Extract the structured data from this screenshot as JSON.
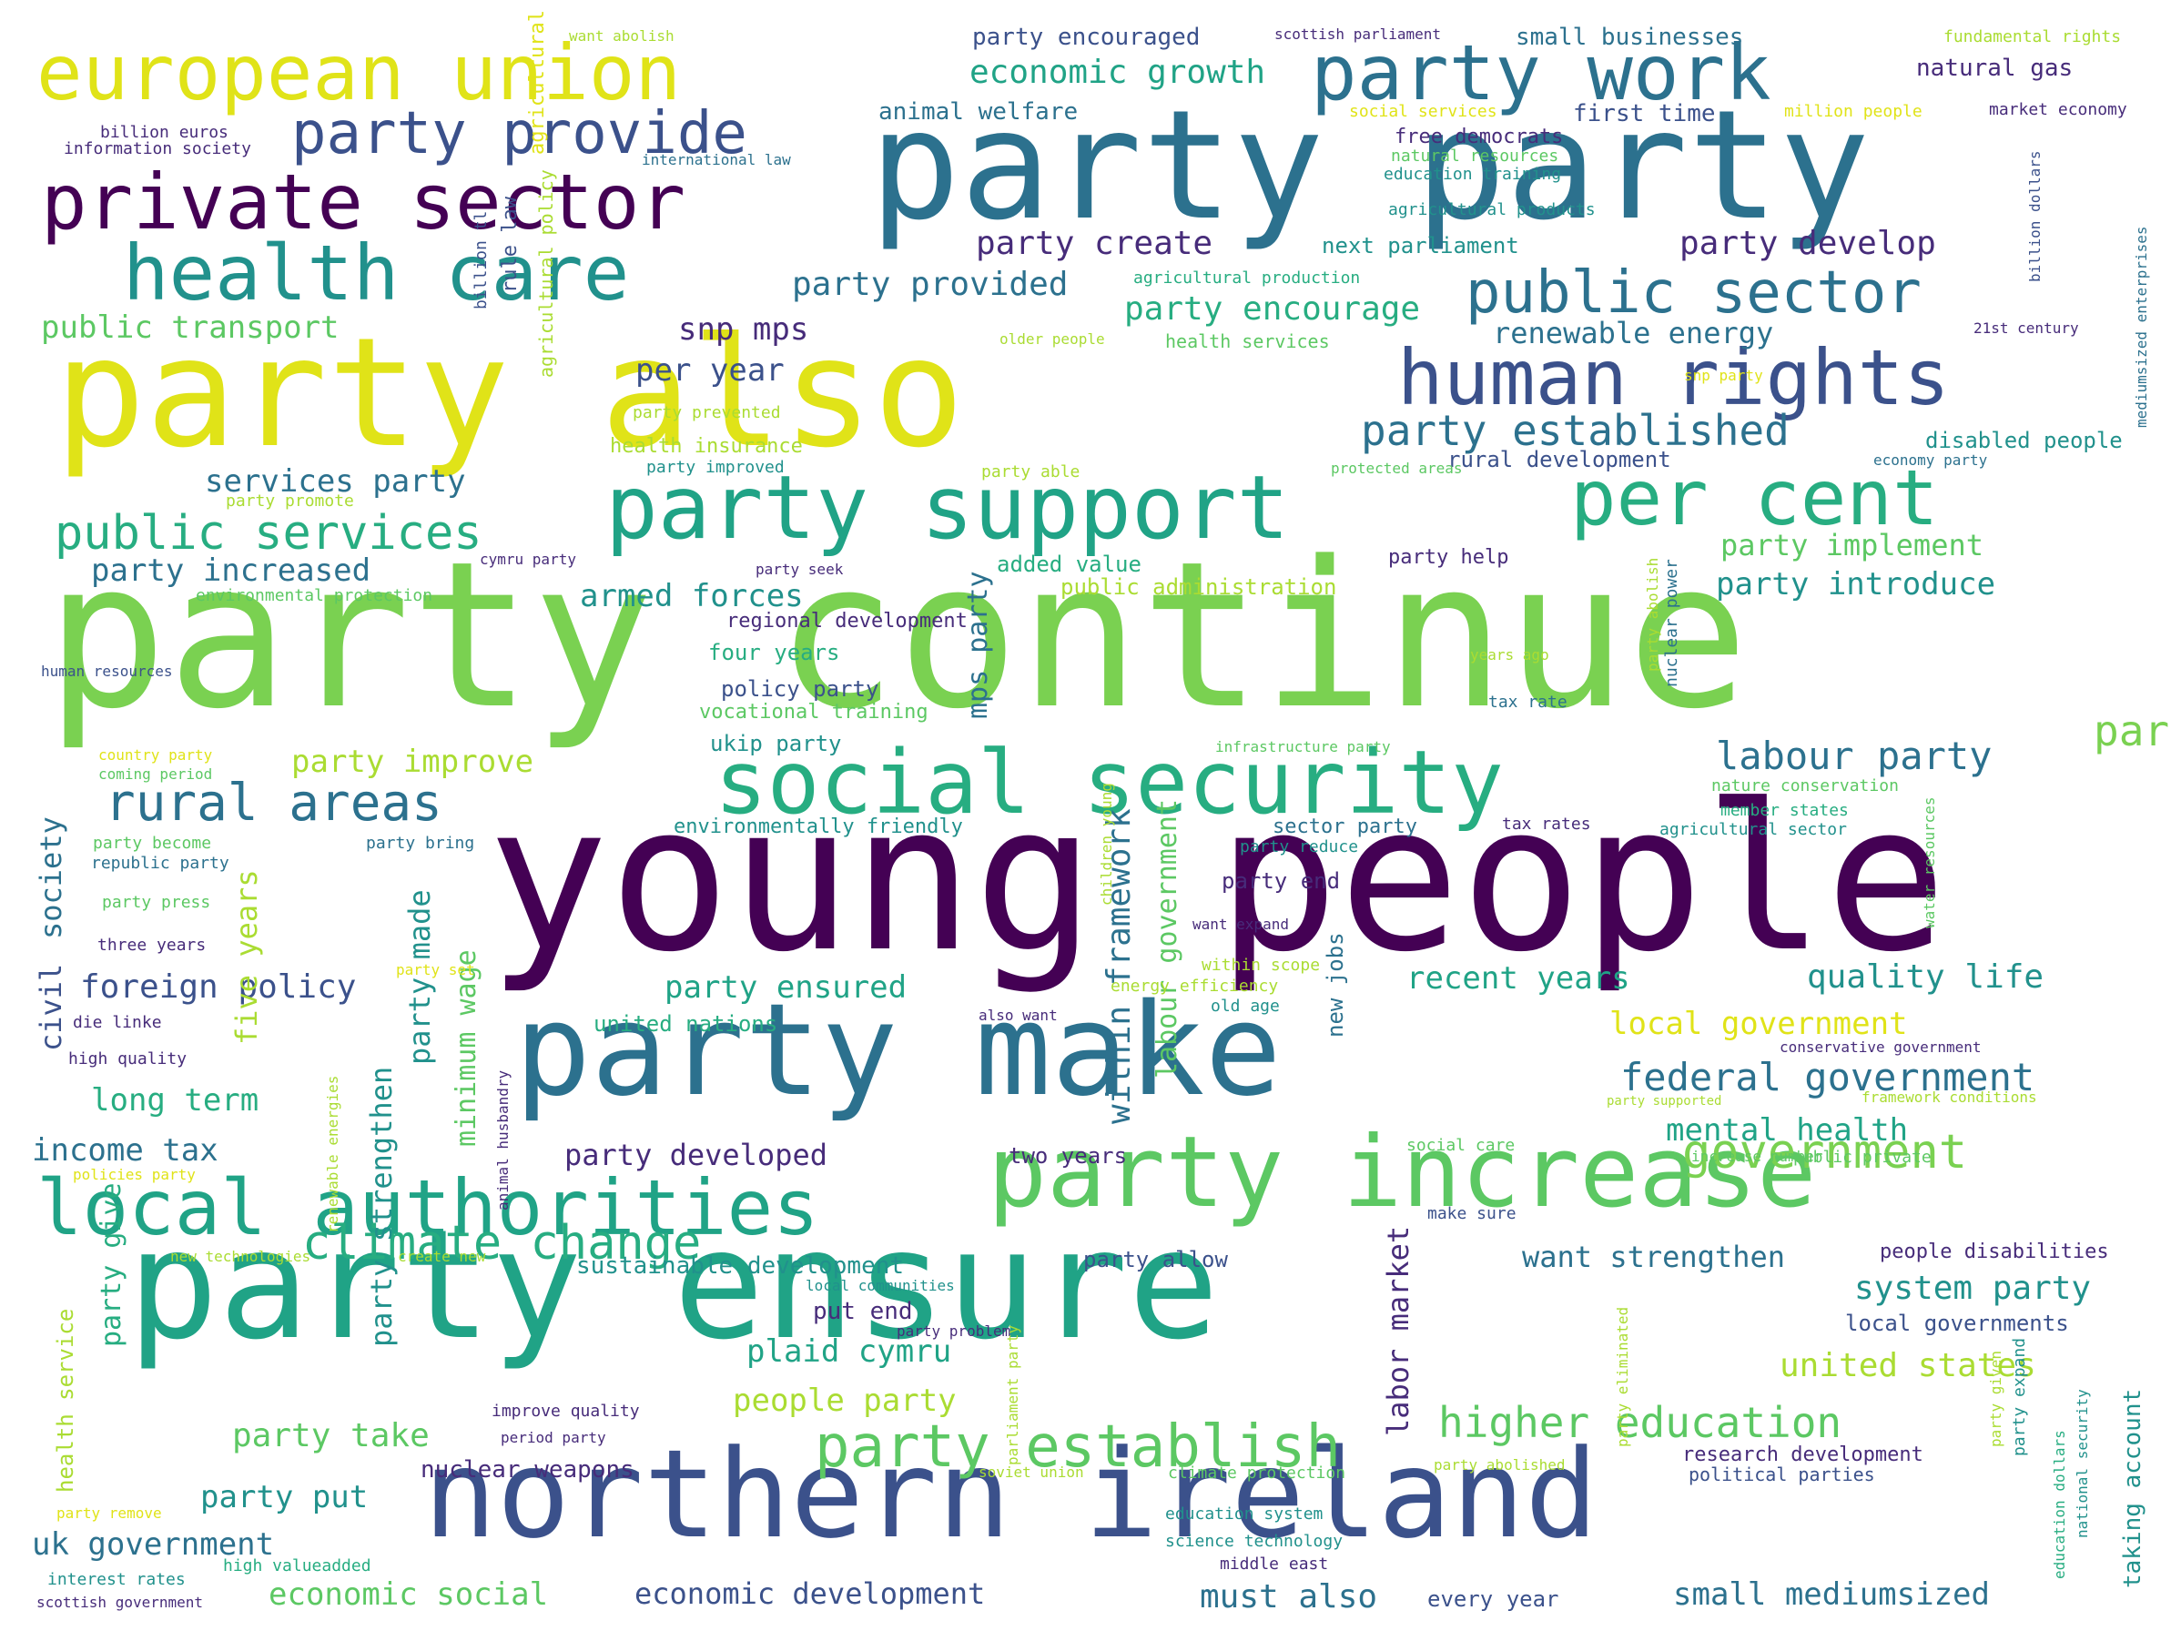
{
  "palette": {
    "dark_purple": "#440154",
    "indigo": "#472c7a",
    "slate_blue": "#3b518b",
    "steel_blue": "#2c718e",
    "teal": "#21918c",
    "green_teal": "#27ad81",
    "green": "#5cc863",
    "lime": "#aadc32",
    "yellow": "#e0e318"
  },
  "words": [
    {
      "text": "party continue"
    },
    {
      "text": "young people"
    },
    {
      "text": "party party"
    },
    {
      "text": "party also"
    },
    {
      "text": "party ensure"
    },
    {
      "text": "party make"
    },
    {
      "text": "northern ireland"
    },
    {
      "text": "party increase"
    },
    {
      "text": "european union"
    },
    {
      "text": "party work"
    },
    {
      "text": "private sector"
    },
    {
      "text": "health care"
    },
    {
      "text": "party provide"
    },
    {
      "text": "public sector"
    },
    {
      "text": "human rights"
    },
    {
      "text": "party support"
    },
    {
      "text": "per cent"
    },
    {
      "text": "social security"
    },
    {
      "text": "local authorities"
    },
    {
      "text": "party establish"
    },
    {
      "text": "rural areas"
    },
    {
      "text": "public services"
    },
    {
      "text": "climate change"
    },
    {
      "text": "higher education"
    },
    {
      "text": "federal government"
    },
    {
      "text": "government"
    },
    {
      "text": "labour party"
    },
    {
      "text": "party"
    },
    {
      "text": "economic growth"
    },
    {
      "text": "party established"
    },
    {
      "text": "party create"
    },
    {
      "text": "party develop"
    },
    {
      "text": "party provided"
    },
    {
      "text": "party encourage"
    },
    {
      "text": "renewable energy"
    },
    {
      "text": "snp mps"
    },
    {
      "text": "per year"
    },
    {
      "text": "public transport"
    },
    {
      "text": "services party"
    },
    {
      "text": "party increased"
    },
    {
      "text": "armed forces"
    },
    {
      "text": "party implement"
    },
    {
      "text": "party introduce"
    },
    {
      "text": "party improve"
    },
    {
      "text": "foreign policy"
    },
    {
      "text": "party ensured"
    },
    {
      "text": "recent years"
    },
    {
      "text": "quality life"
    },
    {
      "text": "local government"
    },
    {
      "text": "long term"
    },
    {
      "text": "income tax"
    },
    {
      "text": "party developed"
    },
    {
      "text": "mental health"
    },
    {
      "text": "plaid cymru"
    },
    {
      "text": "people party"
    },
    {
      "text": "united states"
    },
    {
      "text": "party take"
    },
    {
      "text": "party put"
    },
    {
      "text": "uk government"
    },
    {
      "text": "economic social"
    },
    {
      "text": "economic development"
    },
    {
      "text": "small mediumsized"
    },
    {
      "text": "must also"
    },
    {
      "text": "system party"
    },
    {
      "text": "want strengthen"
    },
    {
      "text": "nuclear weapons"
    },
    {
      "text": "sustainable development"
    },
    {
      "text": "put end"
    },
    {
      "text": "party allow"
    },
    {
      "text": "party encouraged"
    },
    {
      "text": "small businesses"
    },
    {
      "text": "natural gas"
    },
    {
      "text": "animal welfare"
    },
    {
      "text": "first time"
    },
    {
      "text": "free democrats"
    },
    {
      "text": "next parliament"
    },
    {
      "text": "disabled people"
    },
    {
      "text": "rural development"
    },
    {
      "text": "policy party"
    },
    {
      "text": "four years"
    },
    {
      "text": "regional development"
    },
    {
      "text": "vocational training"
    },
    {
      "text": "ukip party"
    },
    {
      "text": "environmentally friendly"
    },
    {
      "text": "sector party"
    },
    {
      "text": "party end"
    },
    {
      "text": "party help"
    },
    {
      "text": "added value"
    },
    {
      "text": "public administration"
    },
    {
      "text": "health insurance"
    },
    {
      "text": "two years"
    },
    {
      "text": "local governments"
    },
    {
      "text": "research development"
    },
    {
      "text": "political parties"
    },
    {
      "text": "people disabilities"
    },
    {
      "text": "every year"
    },
    {
      "text": "society"
    },
    {
      "text": "civil"
    },
    {
      "text": "five years"
    },
    {
      "text": "minimum wage"
    },
    {
      "text": "party made"
    },
    {
      "text": "within framework"
    },
    {
      "text": "labour government"
    },
    {
      "text": "labor market"
    },
    {
      "text": "party strengthen"
    },
    {
      "text": "party give"
    },
    {
      "text": "mps party"
    },
    {
      "text": "new jobs"
    },
    {
      "text": "taking account"
    },
    {
      "text": "health service"
    },
    {
      "text": "rule law"
    },
    {
      "text": "agricultural policy"
    },
    {
      "text": "billion tl"
    },
    {
      "text": "billion euros"
    },
    {
      "text": "information society"
    },
    {
      "text": "international law"
    },
    {
      "text": "want abolish"
    },
    {
      "text": "scottish parliament"
    },
    {
      "text": "fundamental rights"
    },
    {
      "text": "market economy"
    },
    {
      "text": "million people"
    },
    {
      "text": "social services"
    },
    {
      "text": "natural resources"
    },
    {
      "text": "education training"
    },
    {
      "text": "agricultural products"
    },
    {
      "text": "agricultural production"
    },
    {
      "text": "health services"
    },
    {
      "text": "21st century"
    },
    {
      "text": "older people"
    },
    {
      "text": "snp party"
    },
    {
      "text": "party prevented"
    },
    {
      "text": "party improved"
    },
    {
      "text": "party able"
    },
    {
      "text": "protected areas"
    },
    {
      "text": "economy party"
    },
    {
      "text": "party promote"
    },
    {
      "text": "cymru party"
    },
    {
      "text": "party seek"
    },
    {
      "text": "environmental protection"
    },
    {
      "text": "human resources"
    },
    {
      "text": "country party"
    },
    {
      "text": "coming period"
    },
    {
      "text": "party become"
    },
    {
      "text": "republic party"
    },
    {
      "text": "party bring"
    },
    {
      "text": "party press"
    },
    {
      "text": "three years"
    },
    {
      "text": "party set"
    },
    {
      "text": "die linke"
    },
    {
      "text": "high quality"
    },
    {
      "text": "policies party"
    },
    {
      "text": "new technologies"
    },
    {
      "text": "create new"
    },
    {
      "text": "local communities"
    },
    {
      "text": "party problem"
    },
    {
      "text": "improve quality"
    },
    {
      "text": "period party"
    },
    {
      "text": "party remove"
    },
    {
      "text": "interest rates"
    },
    {
      "text": "high valueadded"
    },
    {
      "text": "scottish government"
    },
    {
      "text": "soviet union"
    },
    {
      "text": "climate protection"
    },
    {
      "text": "party abolished"
    },
    {
      "text": "education system"
    },
    {
      "text": "science technology"
    },
    {
      "text": "middle east"
    },
    {
      "text": "years ago"
    },
    {
      "text": "tax rate"
    },
    {
      "text": "infrastructure party"
    },
    {
      "text": "nature conservation"
    },
    {
      "text": "member states"
    },
    {
      "text": "tax rates"
    },
    {
      "text": "agricultural sector"
    },
    {
      "text": "party reduce"
    },
    {
      "text": "want expand"
    },
    {
      "text": "within scope"
    },
    {
      "text": "energy efficiency"
    },
    {
      "text": "old age"
    },
    {
      "text": "united nations"
    },
    {
      "text": "also want"
    },
    {
      "text": "conservative government"
    },
    {
      "text": "framework conditions"
    },
    {
      "text": "party supported"
    },
    {
      "text": "social care"
    },
    {
      "text": "increase number"
    },
    {
      "text": "public private"
    },
    {
      "text": "make sure"
    },
    {
      "text": "children young"
    },
    {
      "text": "nuclear power"
    },
    {
      "text": "party abolish"
    },
    {
      "text": "water resources"
    },
    {
      "text": "billion dollars"
    },
    {
      "text": "mediumsized enterprises"
    },
    {
      "text": "party expand"
    },
    {
      "text": "party given"
    },
    {
      "text": "national security"
    },
    {
      "text": "education dollars"
    },
    {
      "text": "renewable energies"
    },
    {
      "text": "animal husbandry"
    },
    {
      "text": "parliament party"
    },
    {
      "text": "party eliminated"
    },
    {
      "text": "agricultural policy"
    }
  ]
}
